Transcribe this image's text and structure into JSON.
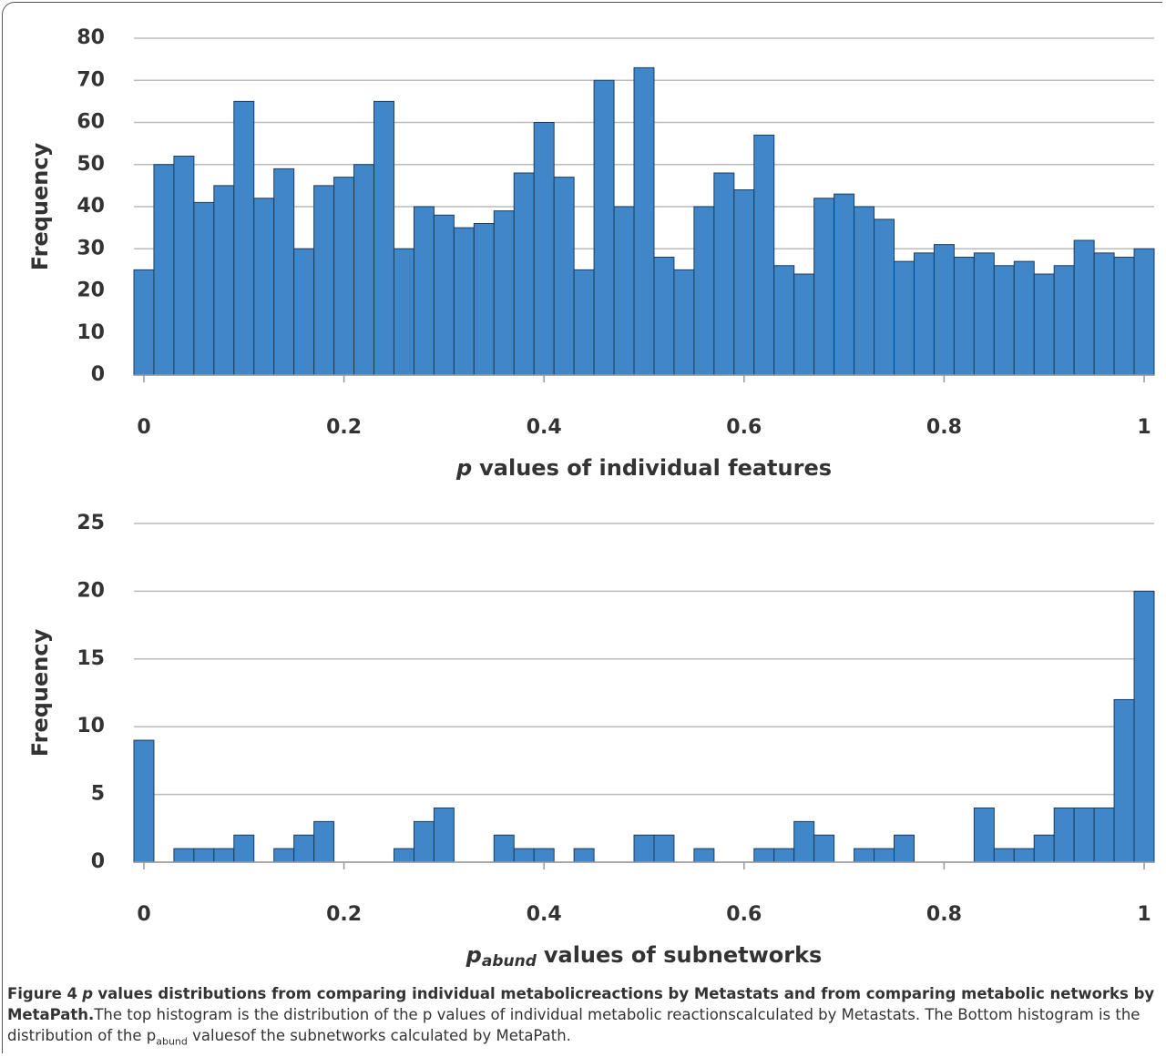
{
  "chart_data": [
    {
      "type": "histogram",
      "ylabel": "Frequency",
      "xlabel": {
        "var": "p",
        "text": "values of individual features"
      },
      "bins": [
        -0.01,
        0.01,
        0.03,
        0.05,
        0.07,
        0.09,
        0.11,
        0.13,
        0.15,
        0.17,
        0.19,
        0.21,
        0.23,
        0.25,
        0.27,
        0.29,
        0.31,
        0.33,
        0.35,
        0.37,
        0.39,
        0.41,
        0.43,
        0.45,
        0.47,
        0.49,
        0.51,
        0.53,
        0.55,
        0.57,
        0.59,
        0.61,
        0.63,
        0.65,
        0.67,
        0.69,
        0.71,
        0.73,
        0.75,
        0.77,
        0.79,
        0.81,
        0.83,
        0.85,
        0.87,
        0.89,
        0.91,
        0.93,
        0.95,
        0.97,
        0.99,
        1.01
      ],
      "values": [
        25,
        50,
        52,
        41,
        45,
        65,
        42,
        49,
        30,
        45,
        47,
        50,
        65,
        30,
        40,
        38,
        35,
        36,
        39,
        48,
        60,
        47,
        25,
        70,
        40,
        73,
        28,
        25,
        40,
        48,
        44,
        57,
        26,
        24,
        42,
        43,
        40,
        37,
        27,
        29,
        31,
        28,
        29,
        26,
        27,
        24,
        26,
        32,
        29,
        28,
        30
      ],
      "color": "#3f87c8",
      "xlim": [
        -0.01,
        1.01
      ],
      "xticks": [
        0,
        0.2,
        0.4,
        0.6,
        0.8,
        1
      ],
      "ylim": [
        0,
        80
      ],
      "yticks": [
        0,
        10,
        20,
        30,
        40,
        50,
        60,
        70,
        80
      ],
      "grid": true
    },
    {
      "type": "histogram",
      "ylabel": "Frequency",
      "xlabel": {
        "var": "p",
        "sub": "abund",
        "text": "values of subnetworks"
      },
      "bins": [
        -0.01,
        0.01,
        0.03,
        0.05,
        0.07,
        0.09,
        0.11,
        0.13,
        0.15,
        0.17,
        0.19,
        0.21,
        0.23,
        0.25,
        0.27,
        0.29,
        0.31,
        0.33,
        0.35,
        0.37,
        0.39,
        0.41,
        0.43,
        0.45,
        0.47,
        0.49,
        0.51,
        0.53,
        0.55,
        0.57,
        0.59,
        0.61,
        0.63,
        0.65,
        0.67,
        0.69,
        0.71,
        0.73,
        0.75,
        0.77,
        0.79,
        0.81,
        0.83,
        0.85,
        0.87,
        0.89,
        0.91,
        0.93,
        0.95,
        0.97,
        0.99,
        1.01
      ],
      "values": [
        9,
        0,
        1,
        1,
        1,
        2,
        0,
        1,
        2,
        3,
        0,
        0,
        0,
        1,
        3,
        4,
        0,
        0,
        2,
        1,
        1,
        0,
        1,
        0,
        0,
        2,
        2,
        0,
        1,
        0,
        0,
        1,
        1,
        3,
        2,
        0,
        1,
        1,
        2,
        0,
        0,
        0,
        4,
        1,
        1,
        2,
        4,
        4,
        4,
        12,
        20
      ],
      "color": "#3f87c8",
      "xlim": [
        -0.01,
        1.01
      ],
      "xticks": [
        0,
        0.2,
        0.4,
        0.6,
        0.8,
        1
      ],
      "ylim": [
        0,
        25
      ],
      "yticks": [
        0,
        5,
        10,
        15,
        20,
        25
      ],
      "grid": true
    }
  ],
  "caption": {
    "label": "Figure 4",
    "title_var": "p",
    "title": "values distributions from comparing individual metabolicreactions by Metastats and from comparing metabolic networks by MetaPath.",
    "text_1": "The top histogram is the distribution of the p values of individual metabolic reactionscalculated by Metastats. The Bottom histogram is the distribution of the p",
    "sub": "abund",
    "text_2": "valuesof the subnetworks calculated by MetaPath."
  }
}
